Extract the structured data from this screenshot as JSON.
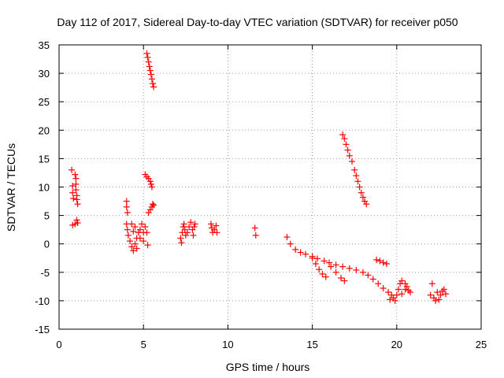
{
  "chart_data": {
    "type": "scatter",
    "title": "Day 112 of 2017, Sidereal Day-to-day VTEC variation (SDTVAR) for receiver p050",
    "xlabel": "GPS time / hours",
    "ylabel": "SDTVAR / TECUs",
    "xlim": [
      0,
      25
    ],
    "ylim": [
      -15,
      35
    ],
    "xticks": [
      0,
      5,
      10,
      15,
      20,
      25
    ],
    "yticks": [
      -15,
      -10,
      -5,
      0,
      5,
      10,
      15,
      20,
      25,
      30,
      35
    ],
    "xtick_labels": [
      "0",
      "5",
      "10",
      "15",
      "20",
      "25"
    ],
    "ytick_labels": [
      "-15",
      "-10",
      "-5",
      "0",
      "5",
      "10",
      "15",
      "20",
      "25",
      "30",
      "35"
    ],
    "grid": true,
    "marker": "plus",
    "series_color": "#ff0000",
    "series": [
      {
        "name": "SDTVAR",
        "points": [
          [
            0.75,
            13.0
          ],
          [
            0.8,
            10.2
          ],
          [
            0.8,
            9.0
          ],
          [
            0.85,
            8.0
          ],
          [
            0.8,
            3.3
          ],
          [
            0.95,
            3.5
          ],
          [
            0.95,
            12.2
          ],
          [
            1.0,
            11.5
          ],
          [
            1.0,
            10.5
          ],
          [
            1.0,
            9.5
          ],
          [
            1.05,
            8.5
          ],
          [
            1.05,
            7.8
          ],
          [
            1.1,
            7.0
          ],
          [
            1.05,
            4.2
          ],
          [
            1.1,
            3.7
          ],
          [
            4.0,
            7.5
          ],
          [
            4.0,
            6.5
          ],
          [
            4.05,
            5.5
          ],
          [
            4.0,
            3.5
          ],
          [
            4.05,
            2.5
          ],
          [
            4.1,
            1.5
          ],
          [
            4.2,
            0.5
          ],
          [
            4.3,
            -0.5
          ],
          [
            4.4,
            -1.2
          ],
          [
            4.5,
            0.0
          ],
          [
            4.6,
            1.0
          ],
          [
            4.7,
            2.0
          ],
          [
            4.3,
            3.5
          ],
          [
            4.5,
            3.0
          ],
          [
            4.8,
            2.5
          ],
          [
            4.9,
            3.5
          ],
          [
            5.0,
            2.0
          ],
          [
            5.1,
            3.0
          ],
          [
            5.2,
            2.0
          ],
          [
            4.8,
            1.0
          ],
          [
            5.0,
            0.5
          ],
          [
            4.6,
            -0.8
          ],
          [
            5.25,
            -0.2
          ],
          [
            4.4,
            2.2
          ],
          [
            5.1,
            12.2
          ],
          [
            5.2,
            11.8
          ],
          [
            5.3,
            11.5
          ],
          [
            5.4,
            11.0
          ],
          [
            5.45,
            10.5
          ],
          [
            5.5,
            10.0
          ],
          [
            5.2,
            33.5
          ],
          [
            5.25,
            32.8
          ],
          [
            5.3,
            32.0
          ],
          [
            5.35,
            31.2
          ],
          [
            5.4,
            30.5
          ],
          [
            5.45,
            29.8
          ],
          [
            5.5,
            29.0
          ],
          [
            5.55,
            28.2
          ],
          [
            5.6,
            27.6
          ],
          [
            5.3,
            5.5
          ],
          [
            5.4,
            6.0
          ],
          [
            5.5,
            6.5
          ],
          [
            5.55,
            7.0
          ],
          [
            5.6,
            6.8
          ],
          [
            7.2,
            1.0
          ],
          [
            7.25,
            0.2
          ],
          [
            7.3,
            2.0
          ],
          [
            7.35,
            3.0
          ],
          [
            7.4,
            3.5
          ],
          [
            7.45,
            2.5
          ],
          [
            7.5,
            1.5
          ],
          [
            7.6,
            2.0
          ],
          [
            7.7,
            3.0
          ],
          [
            7.8,
            3.8
          ],
          [
            7.9,
            2.5
          ],
          [
            7.95,
            1.5
          ],
          [
            8.0,
            3.0
          ],
          [
            8.05,
            3.5
          ],
          [
            9.0,
            3.5
          ],
          [
            9.05,
            2.8
          ],
          [
            9.1,
            2.0
          ],
          [
            9.2,
            2.5
          ],
          [
            9.3,
            3.2
          ],
          [
            9.35,
            2.0
          ],
          [
            11.6,
            2.8
          ],
          [
            11.65,
            1.5
          ],
          [
            13.5,
            1.2
          ],
          [
            13.7,
            0.0
          ],
          [
            14.0,
            -1.0
          ],
          [
            14.3,
            -1.5
          ],
          [
            14.6,
            -1.8
          ],
          [
            15.0,
            -2.2
          ],
          [
            15.3,
            -2.6
          ],
          [
            15.7,
            -3.0
          ],
          [
            16.0,
            -3.3
          ],
          [
            16.4,
            -3.7
          ],
          [
            16.8,
            -4.0
          ],
          [
            17.2,
            -4.3
          ],
          [
            17.6,
            -4.6
          ],
          [
            18.0,
            -5.0
          ],
          [
            18.3,
            -5.5
          ],
          [
            18.6,
            -6.2
          ],
          [
            18.9,
            -7.0
          ],
          [
            19.2,
            -7.8
          ],
          [
            19.5,
            -8.5
          ],
          [
            19.7,
            -9.0
          ],
          [
            19.8,
            -9.5
          ],
          [
            19.9,
            -10.0
          ],
          [
            20.0,
            -9.0
          ],
          [
            20.1,
            -8.0
          ],
          [
            20.2,
            -7.0
          ],
          [
            20.3,
            -6.5
          ],
          [
            20.5,
            -7.0
          ],
          [
            20.6,
            -7.5
          ],
          [
            20.7,
            -8.2
          ],
          [
            20.8,
            -8.5
          ],
          [
            20.3,
            -8.8
          ],
          [
            20.5,
            -8.0
          ],
          [
            19.6,
            -9.8
          ],
          [
            15.0,
            -2.5
          ],
          [
            15.2,
            -3.5
          ],
          [
            15.4,
            -4.5
          ],
          [
            15.6,
            -5.3
          ],
          [
            15.8,
            -5.8
          ],
          [
            16.1,
            -4.0
          ],
          [
            16.4,
            -5.0
          ],
          [
            16.7,
            -6.0
          ],
          [
            16.9,
            -6.5
          ],
          [
            16.8,
            19.2
          ],
          [
            16.9,
            18.5
          ],
          [
            17.0,
            17.5
          ],
          [
            17.1,
            16.5
          ],
          [
            17.2,
            15.5
          ],
          [
            17.35,
            14.5
          ],
          [
            17.5,
            13.0
          ],
          [
            17.6,
            12.0
          ],
          [
            17.7,
            11.0
          ],
          [
            17.8,
            10.0
          ],
          [
            17.9,
            9.0
          ],
          [
            18.0,
            8.2
          ],
          [
            18.1,
            7.5
          ],
          [
            18.2,
            7.0
          ],
          [
            18.8,
            -2.8
          ],
          [
            19.0,
            -3.0
          ],
          [
            19.2,
            -3.3
          ],
          [
            19.4,
            -3.5
          ],
          [
            22.1,
            -7.0
          ],
          [
            22.0,
            -9.0
          ],
          [
            22.2,
            -9.5
          ],
          [
            22.4,
            -8.5
          ],
          [
            22.5,
            -9.8
          ],
          [
            22.6,
            -9.0
          ],
          [
            22.7,
            -8.3
          ],
          [
            22.8,
            -8.0
          ],
          [
            22.9,
            -8.8
          ],
          [
            22.3,
            -10.0
          ]
        ]
      }
    ]
  }
}
